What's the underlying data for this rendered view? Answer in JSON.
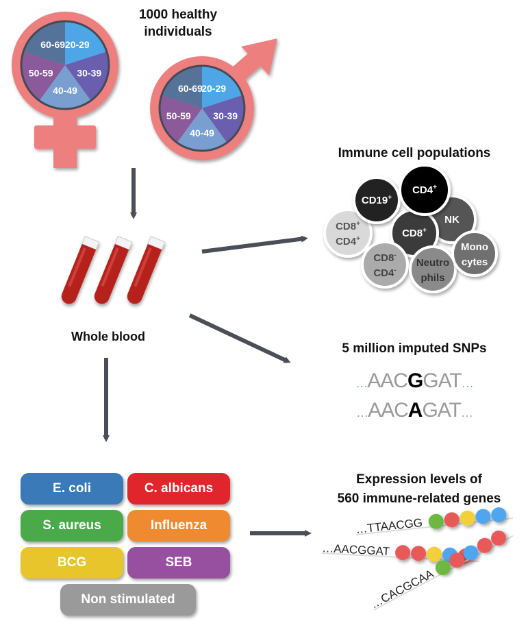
{
  "cohort": {
    "title_line1": "1000 healthy",
    "title_line2": "individuals",
    "symbol_color": "#ee7f7f",
    "age_groups": [
      {
        "label": "20-29",
        "color": "#4fa6e6"
      },
      {
        "label": "30-39",
        "color": "#6a5fae"
      },
      {
        "label": "40-49",
        "color": "#789fcf"
      },
      {
        "label": "50-59",
        "color": "#8a5a9a"
      },
      {
        "label": "60-69",
        "color": "#557399"
      }
    ]
  },
  "blood": {
    "label": "Whole blood",
    "color": "#b5201c"
  },
  "immune_cells": {
    "title": "Immune cell populations",
    "cells": [
      {
        "label": "CD8",
        "sup": "+",
        "label2": "CD4",
        "sup2": "+",
        "color": "#d9d9d9",
        "text_color": "#555555"
      },
      {
        "label": "CD19",
        "sup": "+",
        "color": "#222222",
        "text_color": "#ffffff"
      },
      {
        "label": "NK",
        "color": "#555555",
        "text_color": "#ffffff"
      },
      {
        "label": "CD8",
        "sup": "+",
        "color": "#3a3a3a",
        "text_color": "#ffffff"
      },
      {
        "label": "CD4",
        "sup": "+",
        "color": "#000000",
        "text_color": "#ffffff"
      },
      {
        "label": "CD8",
        "sup": "-",
        "label2": "CD4",
        "sup2": "-",
        "color": "#ababab",
        "text_color": "#444444"
      },
      {
        "label": "Neutro",
        "label2": "phils",
        "color": "#8a8a8a",
        "text_color": "#333333"
      },
      {
        "label": "Mono",
        "label2": "cytes",
        "color": "#707070",
        "text_color": "#ffffff"
      }
    ]
  },
  "snps": {
    "title": "5 million imputed SNPs",
    "rows": [
      {
        "prefix": "…",
        "left": "AAC",
        "variant": "G",
        "right": "GAT",
        "suffix": "…"
      },
      {
        "prefix": "…",
        "left": "AAC",
        "variant": "A",
        "right": "GAT",
        "suffix": "…"
      }
    ]
  },
  "stimuli": [
    {
      "label": "E. coli",
      "color": "#3a7ab8"
    },
    {
      "label": "C. albicans",
      "color": "#e0262c"
    },
    {
      "label": "S. aureus",
      "color": "#4aaa4a"
    },
    {
      "label": "Influenza",
      "color": "#f08a30"
    },
    {
      "label": "BCG",
      "color": "#e8c52b"
    },
    {
      "label": "SEB",
      "color": "#9750a0"
    },
    {
      "label": "Non stimulated",
      "color": "#9a9a9a"
    }
  ],
  "expression": {
    "title_line1": "Expression levels of",
    "title_line2": "560 immune-related genes",
    "rows": [
      {
        "seq": "…TTAACGG",
        "dots": [
          "#6cb83f",
          "#e85a5a",
          "#f2cf3a",
          "#4fa6ee",
          "#4fa6ee"
        ]
      },
      {
        "seq": "…AACGGAT",
        "dots": [
          "#e85a5a",
          "#e85a5a",
          "#f2cf3a",
          "#4fa6ee",
          "#e85a5a"
        ]
      },
      {
        "seq": "…CACGCAA",
        "dots": [
          "#6cb83f",
          "#e85a5a",
          "#4fa6ee",
          "#e85a5a",
          "#e85a5a"
        ]
      }
    ]
  },
  "arrow_color": "#4a4f57"
}
